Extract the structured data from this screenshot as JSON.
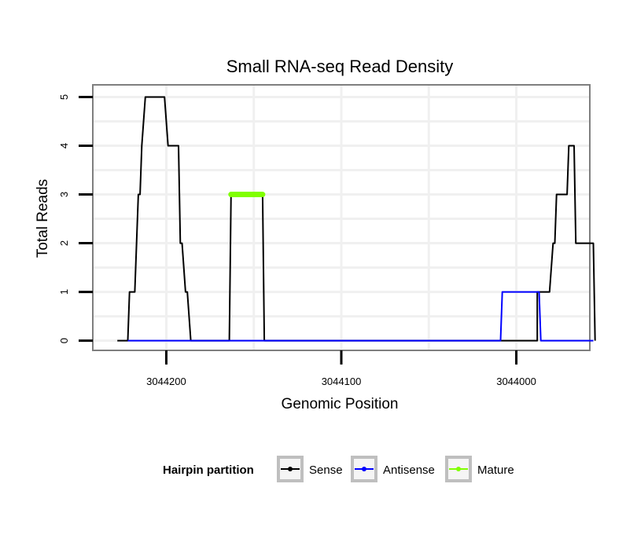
{
  "chart_data": {
    "type": "line",
    "title": "Small RNA-seq Read Density",
    "xlabel": "Genomic Position",
    "ylabel": "Total Reads",
    "xlim": [
      3044242,
      3043958
    ],
    "ylim": [
      -0.2,
      5.25
    ],
    "x_reversed": true,
    "grid": true,
    "x_ticks": [
      3044200,
      3044100,
      3044000
    ],
    "x_tick_labels": [
      "3044200",
      "3044100",
      "3044000"
    ],
    "y_ticks": [
      0,
      1,
      2,
      3,
      4,
      5
    ],
    "y_tick_labels": [
      "0",
      "1",
      "2",
      "3",
      "4",
      "5"
    ],
    "legend_position": "bottom",
    "legend": {
      "title": "Hairpin partition",
      "entries": [
        {
          "name": "Sense",
          "color": "#000000"
        },
        {
          "name": "Antisense",
          "color": "#0000ff"
        },
        {
          "name": "Mature",
          "color": "#80ff00"
        }
      ]
    },
    "series": [
      {
        "name": "Sense",
        "color": "#000000",
        "points": [
          [
            3044228,
            0
          ],
          [
            3044222,
            0
          ],
          [
            3044221,
            1
          ],
          [
            3044218,
            1
          ],
          [
            3044216,
            3
          ],
          [
            3044215,
            3
          ],
          [
            3044214,
            4
          ],
          [
            3044212,
            5
          ],
          [
            3044201,
            5
          ],
          [
            3044199,
            4
          ],
          [
            3044193,
            4
          ],
          [
            3044192,
            2
          ],
          [
            3044191,
            2
          ],
          [
            3044189,
            1
          ],
          [
            3044188,
            1
          ],
          [
            3044186,
            0
          ],
          [
            3044164,
            0
          ],
          [
            3044163,
            3
          ],
          [
            3044145,
            3
          ],
          [
            3044144,
            0
          ],
          [
            3043988,
            0
          ],
          [
            3043988,
            1
          ],
          [
            3043981,
            1
          ],
          [
            3043979,
            2
          ],
          [
            3043978,
            2
          ],
          [
            3043977,
            3
          ],
          [
            3043971,
            3
          ],
          [
            3043970,
            4
          ],
          [
            3043967,
            4
          ],
          [
            3043966,
            2
          ],
          [
            3043956,
            2
          ],
          [
            3043955,
            0
          ]
        ]
      },
      {
        "name": "Antisense",
        "color": "#0000ff",
        "points": [
          [
            3044222,
            0
          ],
          [
            3044009,
            0
          ],
          [
            3044008,
            1
          ],
          [
            3043987,
            1
          ],
          [
            3043986,
            0
          ],
          [
            3043956,
            0
          ]
        ]
      },
      {
        "name": "Mature",
        "color": "#80ff00",
        "points": [
          [
            3044163,
            3
          ],
          [
            3044145,
            3
          ]
        ]
      }
    ]
  }
}
